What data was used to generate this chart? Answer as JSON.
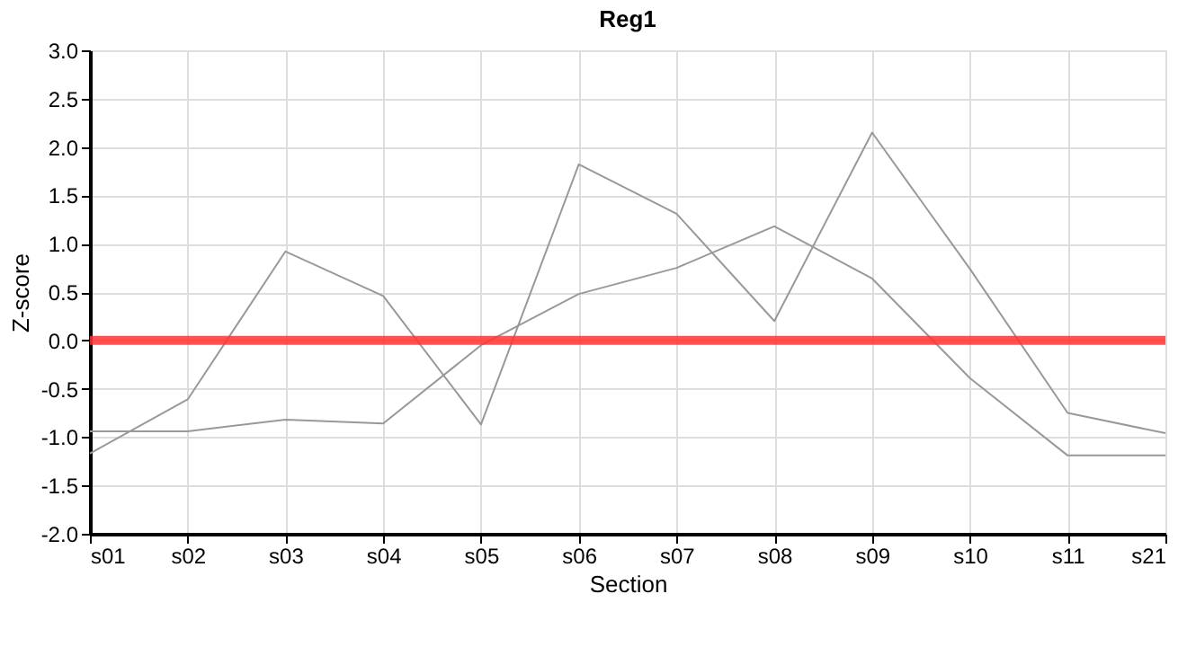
{
  "chart_data": {
    "type": "line",
    "title": "Reg1",
    "xlabel": "Section",
    "ylabel": "Z-score",
    "categories": [
      "s01",
      "s02",
      "s03",
      "s04",
      "s05",
      "s06",
      "s07",
      "s08",
      "s09",
      "s10",
      "s11",
      "s21"
    ],
    "series": [
      {
        "color": "#999999",
        "values": [
          -1.17,
          -0.61,
          0.92,
          0.46,
          -0.87,
          1.82,
          1.31,
          0.2,
          2.15,
          0.74,
          -0.75,
          -0.96
        ]
      },
      {
        "color": "#999999",
        "values": [
          -0.94,
          -0.94,
          -0.82,
          -0.86,
          -0.05,
          0.48,
          0.75,
          1.18,
          0.64,
          -0.39,
          -1.19,
          -1.19
        ]
      }
    ],
    "ylim": [
      -2.0,
      3.0
    ],
    "yticks": [
      {
        "value": -2,
        "label": "-2.0"
      },
      {
        "value": -1.5,
        "label": "-1.5"
      },
      {
        "value": -1,
        "label": "-1.0"
      },
      {
        "value": -0.5,
        "label": "-0.5"
      },
      {
        "value": 0,
        "label": "0.0"
      },
      {
        "value": 0.5,
        "label": "0.5"
      },
      {
        "value": 1,
        "label": "1.0"
      },
      {
        "value": 1.5,
        "label": "1.5"
      },
      {
        "value": 2,
        "label": "2.0"
      },
      {
        "value": 2.5,
        "label": "2.5"
      },
      {
        "value": 3,
        "label": "3.0"
      }
    ],
    "grid": true,
    "legend": false,
    "marker": "none",
    "line_style": "solid",
    "ref_lines": [
      {
        "axis": "y",
        "value": 0,
        "color": "#ff3333"
      }
    ]
  }
}
